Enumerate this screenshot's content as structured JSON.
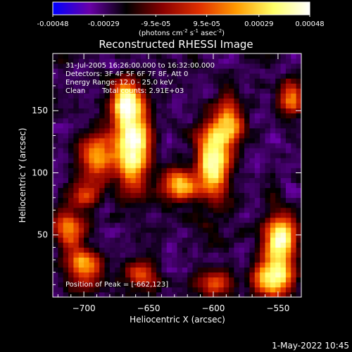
{
  "colorbar": {
    "tick_labels": [
      "-0.00048",
      "-0.00029",
      "-9.5e-05",
      "9.5e-05",
      "0.00029",
      "0.00048"
    ],
    "tick_values": [
      -0.00048,
      -0.00029,
      -9.5e-05,
      9.5e-05,
      0.00029,
      0.00048
    ],
    "range": [
      -0.00048,
      0.00048
    ],
    "units_prefix": "(photons cm",
    "units_exp1": "-2",
    "units_mid": " s",
    "units_exp2": "-1",
    "units_mid2": " asec",
    "units_exp3": "-2",
    "units_suffix": ")",
    "stops": [
      "#0000ff",
      "#6a00a8",
      "#000000",
      "#8a0000",
      "#e03000",
      "#ff9a00",
      "#ffff66",
      "#ffffff"
    ]
  },
  "chart_data": {
    "type": "heatmap",
    "title": "Reconstructed RHESSI Image",
    "xlabel": "Heliocentric X (arcsec)",
    "ylabel": "Heliocentric Y (arcsec)",
    "xlim": [
      -724,
      -532
    ],
    "ylim": [
      0,
      196
    ],
    "x_ticks": [
      -700,
      -650,
      -600,
      -550
    ],
    "x_tick_labels": [
      "−700",
      "−650",
      "−600",
      "−550"
    ],
    "y_ticks": [
      50,
      100,
      150
    ],
    "y_tick_labels": [
      "50",
      "100",
      "150"
    ],
    "pixel_size_arcsec": 4,
    "sources": [
      {
        "x": -662,
        "y": 123,
        "amp": 1.0,
        "sx": 9,
        "sy": 22
      },
      {
        "x": -668,
        "y": 158,
        "amp": 0.7,
        "sx": 7,
        "sy": 12
      },
      {
        "x": -690,
        "y": 115,
        "amp": 0.55,
        "sx": 9,
        "sy": 14
      },
      {
        "x": -600,
        "y": 110,
        "amp": 0.85,
        "sx": 8,
        "sy": 20
      },
      {
        "x": -588,
        "y": 140,
        "amp": 0.6,
        "sx": 7,
        "sy": 14
      },
      {
        "x": -625,
        "y": 90,
        "amp": 0.6,
        "sx": 10,
        "sy": 8
      },
      {
        "x": -548,
        "y": 45,
        "amp": 0.85,
        "sx": 8,
        "sy": 14
      },
      {
        "x": -555,
        "y": 15,
        "amp": 0.75,
        "sx": 10,
        "sy": 10
      },
      {
        "x": -712,
        "y": 55,
        "amp": 0.5,
        "sx": 8,
        "sy": 10
      },
      {
        "x": -700,
        "y": 25,
        "amp": 0.55,
        "sx": 9,
        "sy": 10
      },
      {
        "x": -655,
        "y": 18,
        "amp": 0.4,
        "sx": 8,
        "sy": 8
      },
      {
        "x": -600,
        "y": 10,
        "amp": 0.4,
        "sx": 10,
        "sy": 7
      },
      {
        "x": -540,
        "y": 160,
        "amp": 0.45,
        "sx": 6,
        "sy": 10
      },
      {
        "x": -700,
        "y": 82,
        "amp": 0.35,
        "sx": 8,
        "sy": 8
      }
    ],
    "noise_level": 0.32,
    "negative_level": -0.55
  },
  "annotations": {
    "line1": "31-Jul-2005 16:26:00.000 to 16:32:00.000",
    "line2": "Detectors: 3F 4F 5F 6F 7F 8F, Att 0",
    "line3": "Energy Range: 12.0 - 25.0 keV",
    "line4_a": "Clean",
    "line4_b": "Total counts: 2.91E+03",
    "peak": "Position of Peak = [-662,123]"
  },
  "footer": {
    "date": "1-May-2022 10:45"
  }
}
